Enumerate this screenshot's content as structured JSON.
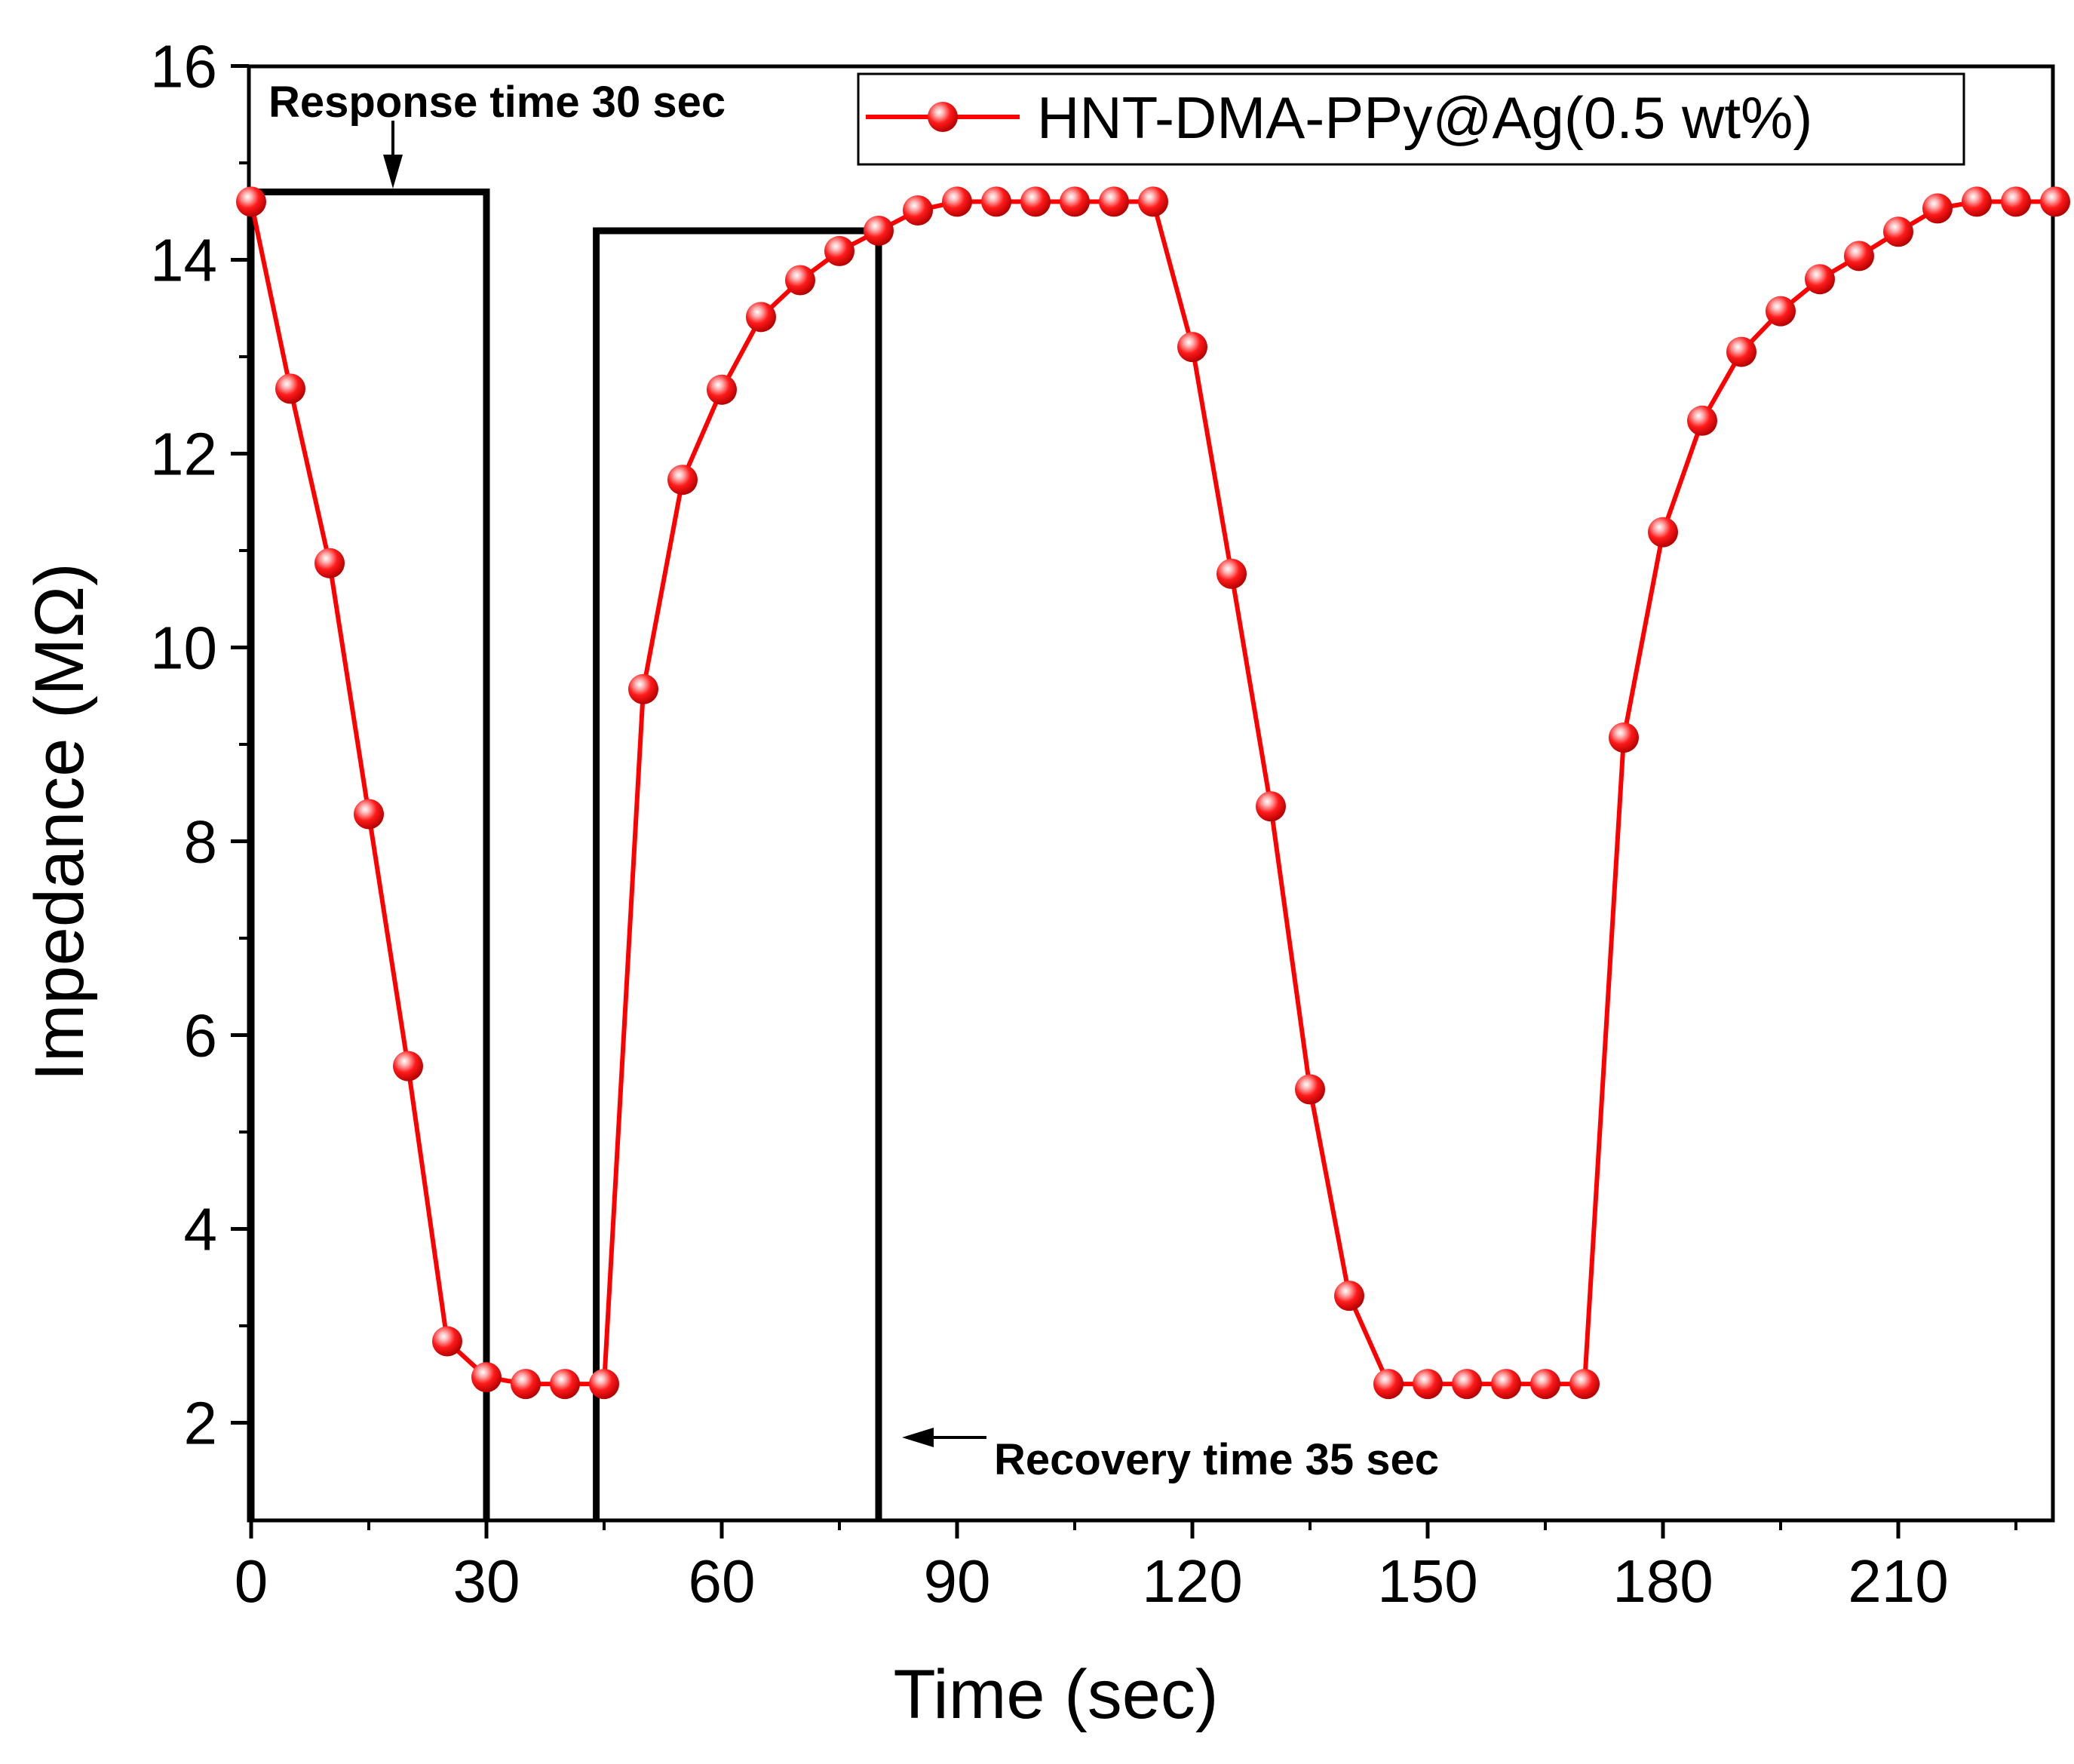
{
  "chart_data": {
    "type": "line",
    "title": "",
    "xlabel": "Time (sec)",
    "ylabel": "Impedance (MΩ)",
    "xlim": [
      0,
      230
    ],
    "ylim": [
      1,
      16
    ],
    "xticks": [
      0,
      30,
      60,
      90,
      120,
      150,
      180,
      210
    ],
    "yticks": [
      2,
      4,
      6,
      8,
      10,
      12,
      14,
      16
    ],
    "grid": false,
    "legend_position": "top-right",
    "series": [
      {
        "name": "HNT-DMA-PPy@Ag(0.5 wt%)",
        "color": "#ff0000",
        "marker": "sphere",
        "x": [
          0,
          5,
          10,
          15,
          20,
          25,
          30,
          35,
          40,
          45,
          50,
          55,
          60,
          65,
          70,
          75,
          80,
          85,
          90,
          95,
          100,
          105,
          110,
          115,
          120,
          125,
          130,
          135,
          140,
          145,
          150,
          155,
          160,
          165,
          170,
          175,
          180,
          185,
          190,
          195,
          200,
          205,
          210,
          215,
          220,
          225,
          230
        ],
        "y": [
          14.6,
          12.67,
          10.87,
          8.28,
          5.68,
          2.84,
          2.47,
          2.4,
          2.4,
          2.4,
          9.57,
          11.73,
          12.66,
          13.41,
          13.79,
          14.09,
          14.3,
          14.51,
          14.6,
          14.6,
          14.6,
          14.6,
          14.6,
          14.6,
          13.1,
          10.76,
          8.36,
          5.44,
          3.31,
          2.4,
          2.4,
          2.4,
          2.4,
          2.4,
          2.4,
          9.07,
          11.19,
          12.34,
          13.05,
          13.47,
          13.8,
          14.04,
          14.29,
          14.53,
          14.6,
          14.6,
          14.6
        ]
      }
    ],
    "annotations": [
      {
        "text": "Response time 30 sec",
        "box_x": [
          0,
          30
        ],
        "box_top_y": 14.7
      },
      {
        "text": "Recovery time 35 sec",
        "box_x": [
          44,
          80
        ],
        "box_top_y": 14.3
      }
    ]
  }
}
